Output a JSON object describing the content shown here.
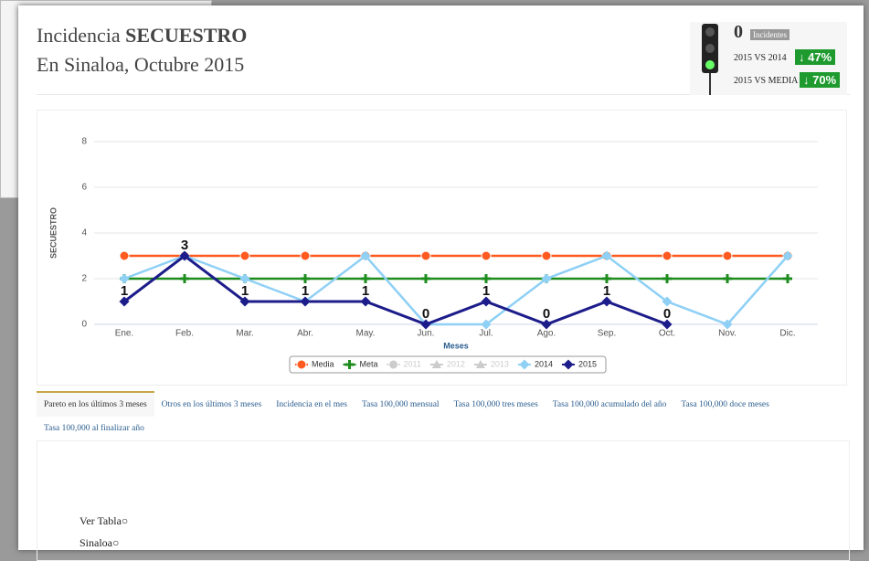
{
  "header": {
    "title_plain": "Incidencia",
    "title_bold": "SECUESTRO",
    "subtitle": "En Sinaloa, Octubre 2015"
  },
  "indicator": {
    "count": "0",
    "count_label": "Incidentes",
    "rows": [
      {
        "label": "2015 VS 2014",
        "value": "47%"
      },
      {
        "label": "2015 VS MEDIA",
        "value": "70%"
      }
    ]
  },
  "chart_data": {
    "type": "line",
    "y_label": "SECUESTRO",
    "x_label": "Meses",
    "categories": [
      "Ene.",
      "Feb.",
      "Mar.",
      "Abr.",
      "May.",
      "Jun.",
      "Jul.",
      "Ago.",
      "Sep.",
      "Oct.",
      "Nov.",
      "Dic."
    ],
    "ylim": [
      0,
      8
    ],
    "yticks": [
      0,
      2,
      4,
      6,
      8
    ],
    "grid": true,
    "legend": "bottom",
    "series": [
      {
        "name": "Media",
        "color": "#ff5a1f",
        "marker": "circle",
        "values": [
          3,
          3,
          3,
          3,
          3,
          3,
          3,
          3,
          3,
          3,
          3,
          3
        ]
      },
      {
        "name": "Meta",
        "color": "#1e8c1e",
        "marker": "cross",
        "values": [
          2,
          2,
          2,
          2,
          2,
          2,
          2,
          2,
          2,
          2,
          2,
          2
        ]
      },
      {
        "name": "2011",
        "color": "#cccccc",
        "marker": "circle",
        "visible": false,
        "values": [
          null,
          null,
          null,
          null,
          null,
          null,
          null,
          null,
          null,
          null,
          null,
          null
        ]
      },
      {
        "name": "2012",
        "color": "#cccccc",
        "marker": "triangle",
        "visible": false,
        "values": [
          null,
          null,
          null,
          null,
          null,
          null,
          null,
          null,
          null,
          null,
          null,
          null
        ]
      },
      {
        "name": "2013",
        "color": "#cccccc",
        "marker": "triangle",
        "visible": false,
        "values": [
          null,
          null,
          null,
          null,
          null,
          null,
          null,
          null,
          null,
          null,
          null,
          null
        ]
      },
      {
        "name": "2014",
        "color": "#8fd0f5",
        "marker": "diamond",
        "values": [
          2,
          3,
          2,
          1,
          3,
          0,
          0,
          2,
          3,
          1,
          0,
          3
        ]
      },
      {
        "name": "2015",
        "color": "#1c1c8a",
        "marker": "diamond",
        "data_labels": true,
        "values": [
          1,
          3,
          1,
          1,
          1,
          0,
          1,
          0,
          1,
          0,
          null,
          null
        ]
      }
    ]
  },
  "tabs": [
    "Pareto en los últimos 3 meses",
    "Otros en los últimos 3 meses",
    "Incidencia en el mes",
    "Tasa 100,000 mensual",
    "Tasa 100,000 tres meses",
    "Tasa 100,000 acumulado del año",
    "Tasa 100,000 doce meses",
    "Tasa 100,000 al finalizar año"
  ],
  "footer": {
    "table_link": "Ver Tabla",
    "region_link": "Sinaloa"
  }
}
